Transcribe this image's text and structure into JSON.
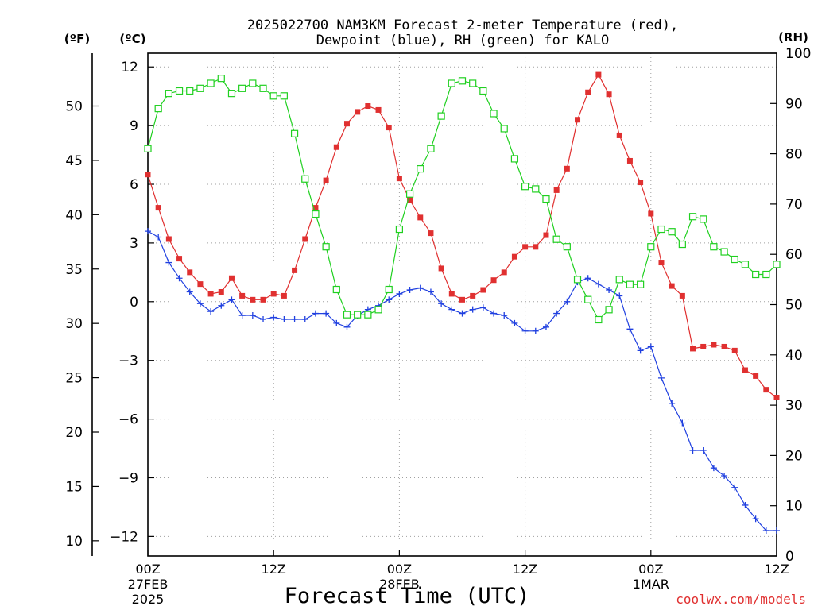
{
  "chart_data": {
    "type": "line",
    "title_line1": "2025022700 NAM3KM Forecast 2-meter Temperature (red),",
    "title_line2": "Dewpoint (blue), RH (green) for KALO",
    "xlabel": "Forecast Time (UTC)",
    "unit_f": "(ºF)",
    "unit_c": "(ºC)",
    "unit_rh": "(RH)",
    "credit": "coolwx.com/models",
    "grid": true,
    "x_hours_range": [
      0,
      60
    ],
    "x_ticks": [
      {
        "h": 0,
        "l1": "00Z",
        "l2": "27FEB",
        "l3": "2025"
      },
      {
        "h": 12,
        "l1": "12Z",
        "l2": "",
        "l3": ""
      },
      {
        "h": 24,
        "l1": "00Z",
        "l2": "28FEB",
        "l3": ""
      },
      {
        "h": 36,
        "l1": "12Z",
        "l2": "",
        "l3": ""
      },
      {
        "h": 48,
        "l1": "00Z",
        "l2": "1MAR",
        "l3": ""
      },
      {
        "h": 60,
        "l1": "12Z",
        "l2": "",
        "l3": ""
      }
    ],
    "y_c_range": [
      -13,
      12.7
    ],
    "y_c_ticks": [
      12,
      9,
      6,
      3,
      0,
      -3,
      -6,
      -9,
      -12
    ],
    "y_c_tick_labels": [
      "12",
      "9",
      "6",
      "3",
      "0",
      "−3",
      "−6",
      "−9",
      "−12"
    ],
    "y_f_ticks": [
      50,
      45,
      40,
      35,
      30,
      25,
      20,
      15,
      10
    ],
    "y_rh_range": [
      0,
      100
    ],
    "y_rh_ticks": [
      100,
      90,
      80,
      70,
      60,
      50,
      40,
      30,
      20,
      10,
      0
    ],
    "series": [
      {
        "name": "Temperature (red)",
        "axis": "C",
        "color": "#e03030",
        "marker": "filled-square",
        "values": [
          6.5,
          4.8,
          3.2,
          2.2,
          1.5,
          0.9,
          0.4,
          0.5,
          1.2,
          0.3,
          0.1,
          0.1,
          0.4,
          0.3,
          1.6,
          3.2,
          4.8,
          6.2,
          7.9,
          9.1,
          9.7,
          10.0,
          9.8,
          8.9,
          6.3,
          5.2,
          4.3,
          3.5,
          1.7,
          0.4,
          0.1,
          0.3,
          0.6,
          1.1,
          1.5,
          2.3,
          2.8,
          2.8,
          3.4,
          5.7,
          6.8,
          9.3,
          10.7,
          11.6,
          10.6,
          8.5,
          7.2,
          6.1,
          4.5,
          2.0,
          0.8,
          0.3,
          -2.4,
          -2.3,
          -2.2,
          -2.3,
          -2.5,
          -3.5,
          -3.8,
          -4.5,
          -4.9
        ]
      },
      {
        "name": "Dewpoint (blue)",
        "axis": "C",
        "color": "#2040e0",
        "marker": "plus",
        "values": [
          3.6,
          3.3,
          2.0,
          1.2,
          0.5,
          -0.1,
          -0.5,
          -0.2,
          0.1,
          -0.7,
          -0.7,
          -0.9,
          -0.8,
          -0.9,
          -0.9,
          -0.9,
          -0.6,
          -0.6,
          -1.1,
          -1.3,
          -0.7,
          -0.4,
          -0.2,
          0.1,
          0.4,
          0.6,
          0.7,
          0.5,
          -0.1,
          -0.4,
          -0.6,
          -0.4,
          -0.3,
          -0.6,
          -0.7,
          -1.1,
          -1.5,
          -1.5,
          -1.3,
          -0.6,
          0.0,
          1.0,
          1.2,
          0.9,
          0.6,
          0.3,
          -1.4,
          -2.5,
          -2.3,
          -3.9,
          -5.2,
          -6.2,
          -7.6,
          -7.6,
          -8.5,
          -8.9,
          -9.5,
          -10.4,
          -11.1,
          -11.7,
          -11.7
        ]
      },
      {
        "name": "RH (green)",
        "axis": "RH",
        "color": "#20d020",
        "marker": "open-square",
        "values": [
          81,
          89,
          92,
          92.5,
          92.5,
          93,
          94,
          95,
          92,
          93,
          94,
          93,
          91.5,
          91.5,
          84,
          75,
          68,
          61.5,
          53,
          48,
          48,
          48,
          49,
          53,
          65,
          72,
          77,
          81,
          87.5,
          94,
          94.5,
          94,
          92.5,
          88,
          85,
          79,
          73.5,
          73,
          71,
          63,
          61.5,
          55,
          51,
          47,
          49,
          55,
          54,
          54,
          61.5,
          65,
          64.5,
          62,
          67.5,
          67,
          61.5,
          60.5,
          59,
          58,
          56,
          56,
          58
        ]
      }
    ]
  }
}
